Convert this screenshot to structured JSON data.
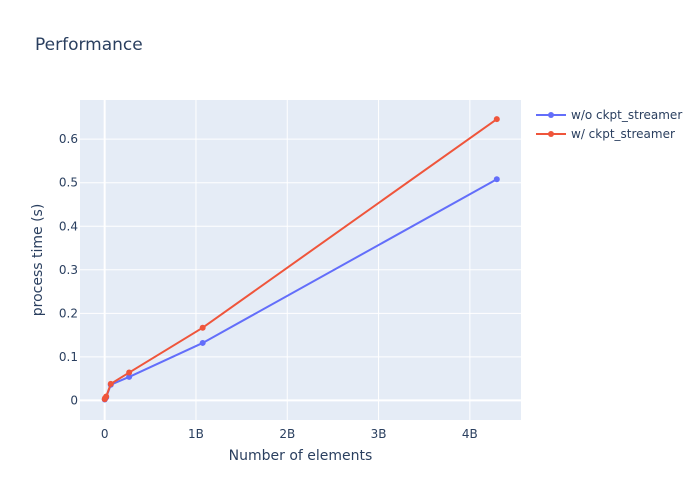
{
  "chart_data": {
    "type": "line",
    "title": "Performance",
    "xlabel": "Number of elements",
    "ylabel": "process time (s)",
    "xlim": [
      -270000000,
      4560000000
    ],
    "ylim": [
      -0.045,
      0.69
    ],
    "xticks": [
      0,
      1000000000,
      2000000000,
      3000000000,
      4000000000
    ],
    "xtick_labels": [
      "0",
      "1B",
      "2B",
      "3B",
      "4B"
    ],
    "yticks": [
      0,
      0.1,
      0.2,
      0.3,
      0.4,
      0.5,
      0.6
    ],
    "ytick_labels": [
      "0",
      "0.1",
      "0.2",
      "0.3",
      "0.4",
      "0.5",
      "0.6"
    ],
    "grid": true,
    "legend_position": "top-right",
    "series": [
      {
        "name": "w/o ckpt_streamer",
        "color": "#636efa",
        "x": [
          1000000,
          4200000,
          16800000,
          67100000,
          268400000,
          1073700000,
          4294900000
        ],
        "y": [
          0.002,
          0.004,
          0.007,
          0.036,
          0.054,
          0.132,
          0.508
        ]
      },
      {
        "name": "w/ ckpt_streamer",
        "color": "#ef553b",
        "x": [
          1000000,
          4200000,
          16800000,
          67100000,
          268400000,
          1073700000,
          4294900000
        ],
        "y": [
          0.003,
          0.005,
          0.009,
          0.038,
          0.064,
          0.167,
          0.646
        ]
      }
    ]
  }
}
